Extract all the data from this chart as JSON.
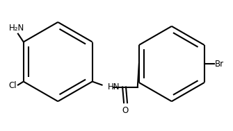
{
  "bg_color": "#ffffff",
  "line_color": "#000000",
  "line_width": 1.5,
  "font_size": 8.5,
  "figsize": [
    3.35,
    1.89
  ],
  "dpi": 100,
  "xlim": [
    0,
    335
  ],
  "ylim": [
    0,
    189
  ],
  "r1cx": 82,
  "r1cy": 100,
  "r1r": 58,
  "r2cx": 248,
  "r2cy": 97,
  "r2r": 55,
  "nh2_label": "H₂N",
  "cl_label": "Cl",
  "hn_label": "HN",
  "o_label": "O",
  "br_label": "Br"
}
